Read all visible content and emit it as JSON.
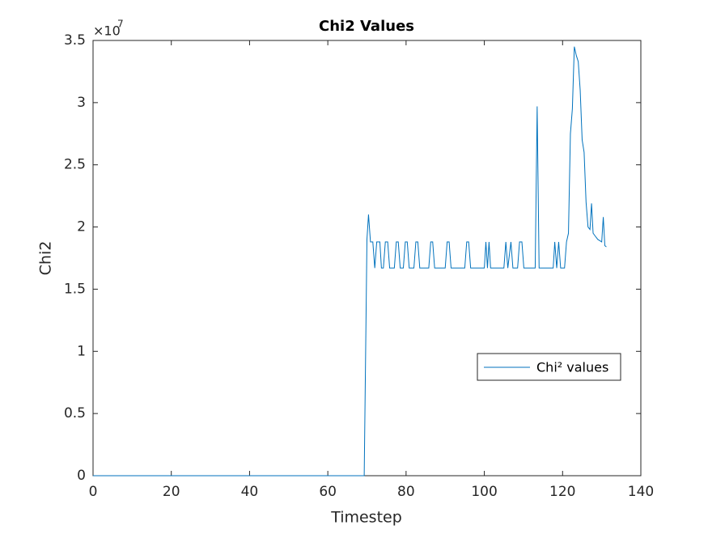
{
  "chart_data": {
    "type": "line",
    "title": "Chi2 Values",
    "x_label": "Timestep",
    "y_label": "Chi2",
    "y_multiplier": {
      "base": "×10",
      "exponent": "7"
    },
    "xlim": [
      0,
      140
    ],
    "xticks": [
      0,
      20,
      40,
      60,
      80,
      100,
      120,
      140
    ],
    "ylim": [
      0,
      3.5
    ],
    "yticks": [
      0,
      0.5,
      1,
      1.5,
      2,
      2.5,
      3,
      3.5
    ],
    "grid": false,
    "legend_position": "east",
    "x": [
      0,
      69.3,
      70,
      70.4,
      70.9,
      71.5,
      72,
      72.5,
      73.3,
      73.7,
      74.2,
      74.7,
      75.3,
      75.8,
      77,
      77.5,
      78,
      78.5,
      79.3,
      79.8,
      80.3,
      80.8,
      82,
      82.5,
      83,
      83.5,
      85.8,
      86.3,
      86.8,
      87.3,
      90,
      90.5,
      91,
      91.5,
      95,
      95.5,
      96,
      96.5,
      100,
      100.4,
      100.8,
      101.2,
      101.6,
      105,
      105.5,
      106,
      106.8,
      107.3,
      108.5,
      109,
      109.6,
      110.1,
      113,
      113.5,
      114,
      117.6,
      118,
      118.5,
      119,
      119.5,
      120.5,
      121,
      121.5,
      122,
      122.5,
      123,
      123.5,
      124,
      124.5,
      125,
      125.5,
      126,
      126.5,
      127,
      127.4,
      127.8,
      128.5,
      129,
      129.5,
      130,
      130.4,
      130.8,
      131.2
    ],
    "series": [
      {
        "name": "Chi² values",
        "color": "#0072bd",
        "values": [
          0,
          0,
          1.9,
          2.1,
          1.88,
          1.88,
          1.67,
          1.88,
          1.88,
          1.67,
          1.67,
          1.88,
          1.88,
          1.67,
          1.67,
          1.88,
          1.88,
          1.67,
          1.67,
          1.88,
          1.88,
          1.67,
          1.67,
          1.88,
          1.88,
          1.67,
          1.67,
          1.88,
          1.88,
          1.67,
          1.67,
          1.88,
          1.88,
          1.67,
          1.67,
          1.88,
          1.88,
          1.67,
          1.67,
          1.88,
          1.67,
          1.88,
          1.67,
          1.67,
          1.88,
          1.67,
          1.88,
          1.67,
          1.67,
          1.88,
          1.88,
          1.67,
          1.67,
          2.97,
          1.67,
          1.67,
          1.88,
          1.67,
          1.88,
          1.67,
          1.67,
          1.88,
          1.95,
          2.75,
          2.95,
          3.45,
          3.38,
          3.33,
          3.1,
          2.7,
          2.6,
          2.2,
          2.0,
          1.98,
          2.19,
          1.95,
          1.92,
          1.9,
          1.89,
          1.88,
          2.08,
          1.85,
          1.84
        ]
      }
    ]
  }
}
